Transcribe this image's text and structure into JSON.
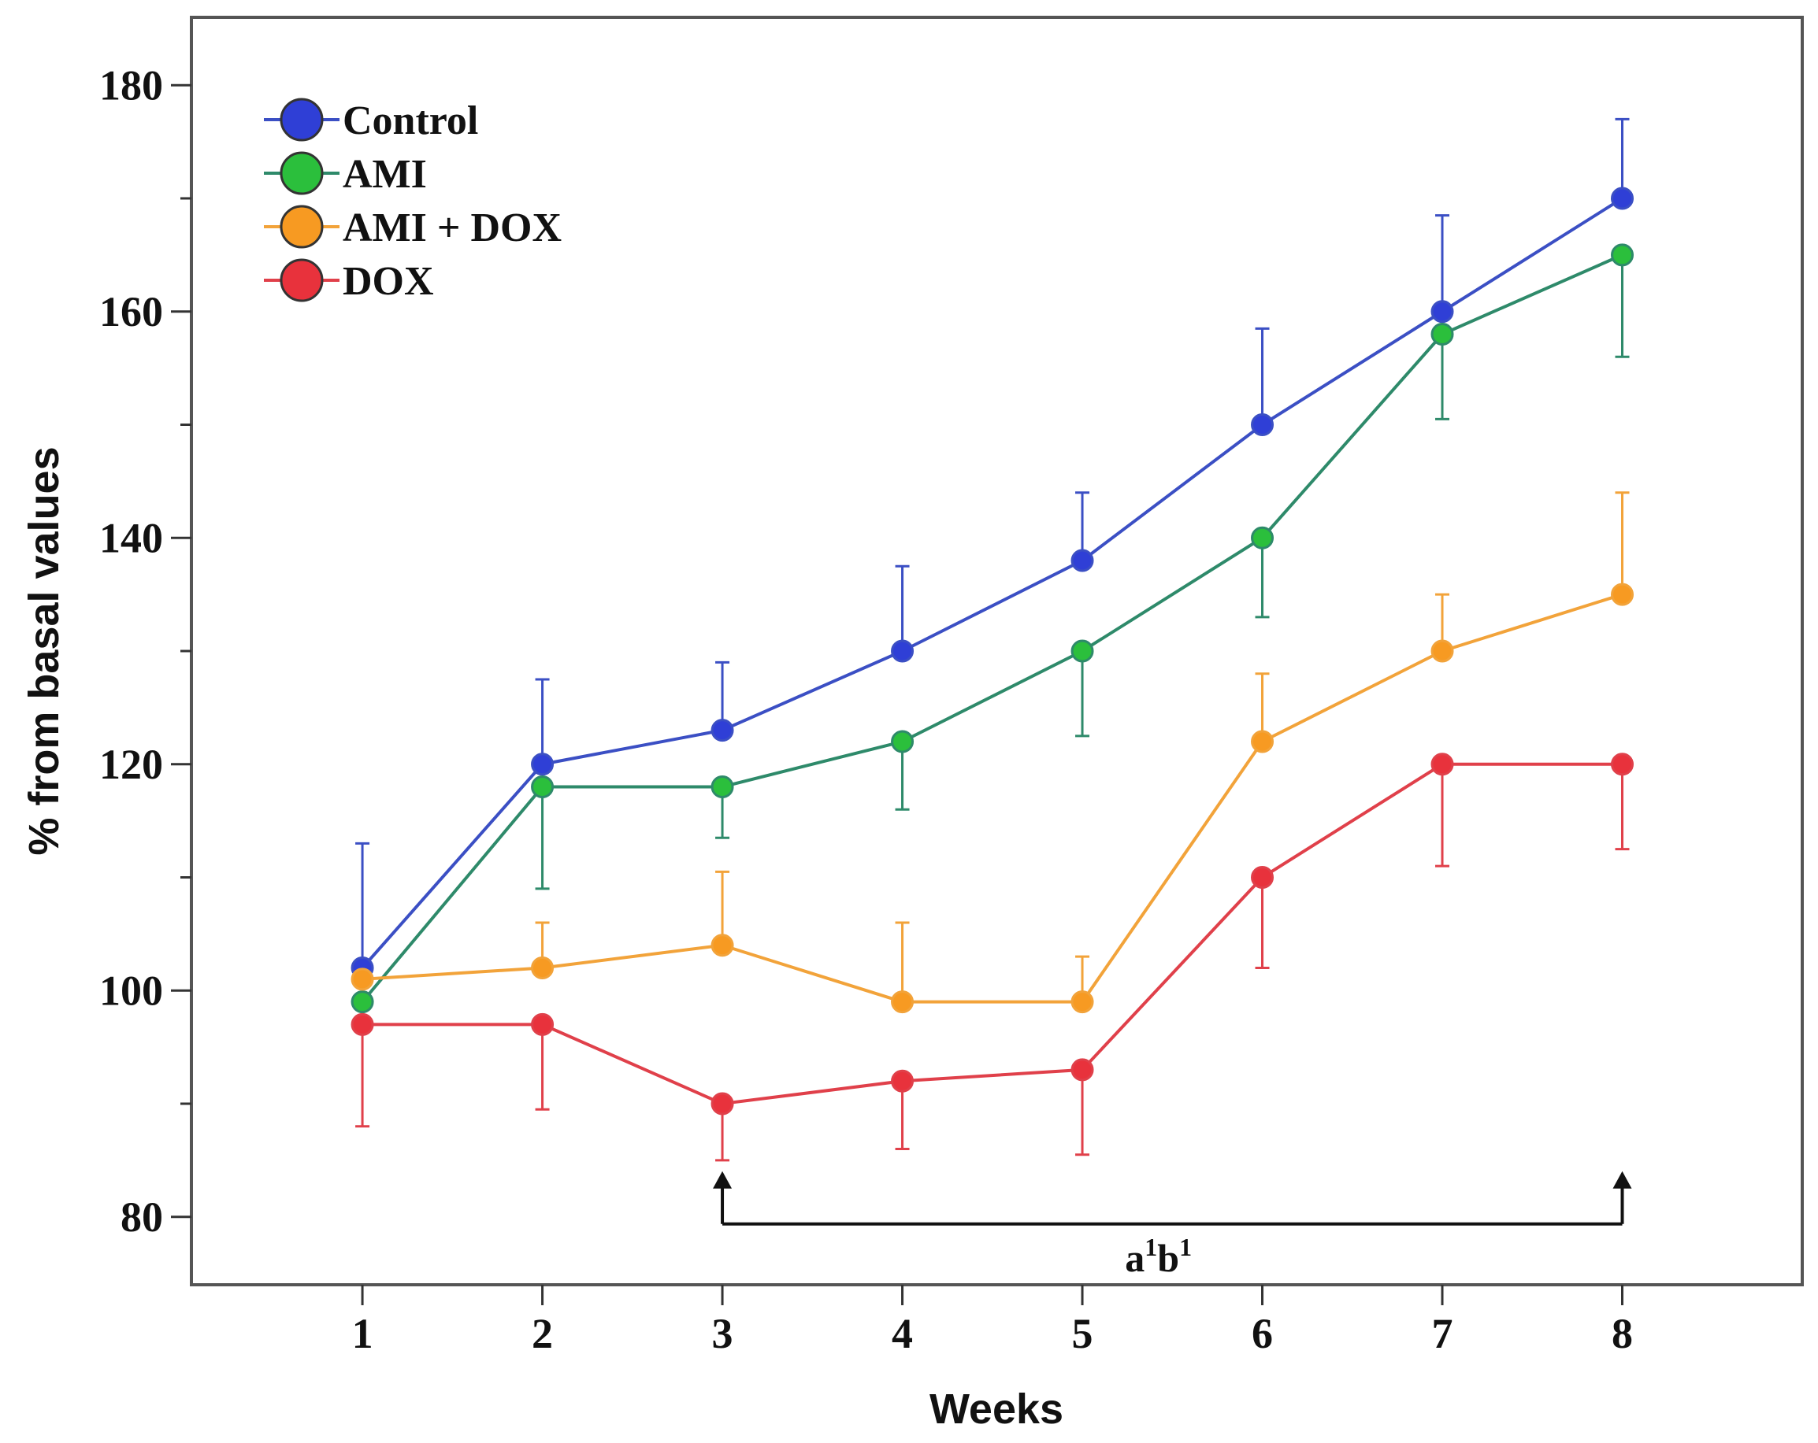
{
  "chart_data": {
    "type": "line",
    "title": "",
    "xlabel": "Weeks",
    "ylabel": "% from basal values",
    "categories": [
      "1",
      "2",
      "3",
      "4",
      "5",
      "6",
      "7",
      "8"
    ],
    "x": [
      1,
      2,
      3,
      4,
      5,
      6,
      7,
      8
    ],
    "xlim": [
      0.05,
      9.0
    ],
    "ylim": [
      74,
      186
    ],
    "yticks": [
      80,
      100,
      120,
      140,
      160,
      180
    ],
    "y_minor_ticks": [
      90,
      110,
      130,
      150,
      170
    ],
    "grid": false,
    "legend_position": "top-left",
    "error_bars": "upper",
    "series": [
      {
        "name": "Control",
        "color": "#3b4fc4",
        "marker_color": "#2f3fd6",
        "values": [
          102,
          120,
          123,
          130,
          138,
          150,
          160,
          170
        ],
        "err_upper": [
          113,
          127.5,
          129,
          137.5,
          144,
          158.5,
          168.5,
          177
        ]
      },
      {
        "name": "AMI",
        "color": "#2e8a6a",
        "marker_color": "#2bbf3c",
        "values": [
          99,
          118,
          118,
          122,
          130,
          140,
          158,
          165
        ],
        "err_lower": [
          99,
          109,
          113.5,
          116,
          122.5,
          133,
          150.5,
          156
        ]
      },
      {
        "name": "AMI + DOX",
        "color": "#f2a33a",
        "marker_color": "#f79a22",
        "values": [
          101,
          102,
          104,
          99,
          99,
          122,
          130,
          135
        ],
        "err_upper": [
          101,
          106,
          110.5,
          106,
          103,
          128,
          135,
          144
        ]
      },
      {
        "name": "DOX",
        "color": "#e0404a",
        "marker_color": "#e8323c",
        "values": [
          97,
          97,
          90,
          92,
          93,
          110,
          120,
          120
        ],
        "err_lower": [
          88,
          89.5,
          85,
          86,
          85.5,
          102,
          111,
          112.5
        ]
      }
    ],
    "annotations": [
      {
        "text": "a",
        "sup": "1",
        "text2": "b",
        "sup2": "1",
        "from_x": 3,
        "to_x": 8,
        "arrow_y": 80
      }
    ]
  }
}
